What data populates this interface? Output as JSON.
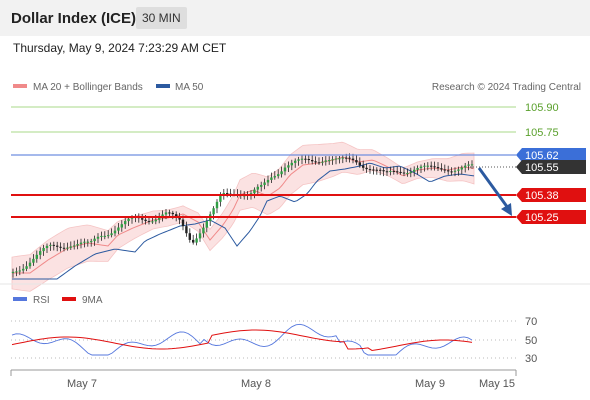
{
  "header": {
    "title": "Dollar Index (ICE)",
    "timeframe": "30 MIN"
  },
  "timestamp": "Thursday, May 9, 2024 7:23:29 AM CET",
  "legend": {
    "ma20": {
      "label": "MA 20 + Bollinger Bands",
      "color": "#f08a8a"
    },
    "ma50": {
      "label": "MA 50",
      "color": "#2c5aa0"
    },
    "copyright": "Research © 2024 Trading Central"
  },
  "levels": [
    {
      "value": "105.90",
      "kind": "resistance-target",
      "color": "#5aa02c"
    },
    {
      "value": "105.75",
      "kind": "resistance-target",
      "color": "#5aa02c"
    },
    {
      "value": "105.62",
      "kind": "pivot",
      "color": "#3b6fd8"
    },
    {
      "value": "105.55",
      "kind": "last-price",
      "color": "#333333"
    },
    {
      "value": "105.38",
      "kind": "support-target",
      "color": "#e01010"
    },
    {
      "value": "105.25",
      "kind": "support-target",
      "color": "#e01010"
    }
  ],
  "rsi_legend": {
    "rsi": {
      "label": "RSI",
      "color": "#5577dd"
    },
    "ma9": {
      "label": "9MA",
      "color": "#e01010"
    }
  },
  "rsi_axis": [
    "70",
    "50",
    "30"
  ],
  "x_axis": [
    "May 7",
    "May 8",
    "May 9",
    "May 15"
  ],
  "chart_data": {
    "type": "candlestick",
    "instrument": "Dollar Index (ICE)",
    "interval": "30 MIN",
    "price_levels": [
      105.9,
      105.75,
      105.62,
      105.55,
      105.38,
      105.25
    ],
    "last_price": 105.55,
    "pivot": 105.62,
    "bias": "down",
    "targets": [
      105.38,
      105.25
    ],
    "rsi_levels": [
      70,
      50,
      30
    ],
    "x_ticks": [
      "May 7",
      "May 8",
      "May 9",
      "May 15"
    ]
  }
}
